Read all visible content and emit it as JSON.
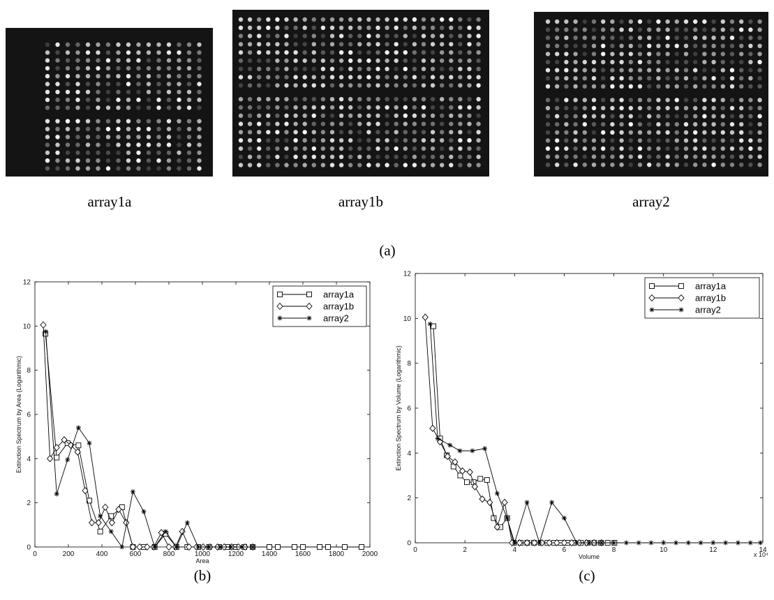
{
  "images": [
    {
      "caption": "array1a"
    },
    {
      "caption": "array1b"
    },
    {
      "caption": "array2"
    }
  ],
  "panel_labels": [
    "(a)",
    "(b)",
    "(c)"
  ],
  "chart_data": [
    {
      "type": "line",
      "xlabel": "Area",
      "ylabel": "Extinction Spectrum by Area (Logarithmic)",
      "xlim": [
        0,
        2000
      ],
      "ylim": [
        0,
        12
      ],
      "xticks": [
        0,
        200,
        400,
        600,
        800,
        1000,
        1200,
        1400,
        1600,
        1800,
        2000
      ],
      "yticks": [
        0,
        2,
        4,
        6,
        8,
        10,
        12
      ],
      "legend": "upper right",
      "series": [
        {
          "name": "array1a",
          "color": "#000000",
          "marker": "square",
          "x": [
            63,
            130,
            195,
            260,
            325,
            390,
            455,
            520,
            585,
            650,
            715,
            780,
            845,
            910,
            975,
            1040,
            1100,
            1150,
            1200,
            1250,
            1300,
            1400,
            1450,
            1550,
            1600,
            1700,
            1750,
            1850,
            1950
          ],
          "values": [
            9.65,
            4.05,
            4.7,
            4.6,
            2.1,
            0.7,
            1.4,
            1.8,
            0,
            0,
            0,
            0.6,
            0,
            0,
            0,
            0,
            0,
            0,
            0,
            0,
            0,
            0,
            0,
            0,
            0,
            0,
            0,
            0,
            0
          ]
        },
        {
          "name": "array1b",
          "color": "#000000",
          "marker": "diamond",
          "x": [
            50,
            90,
            130,
            175,
            215,
            255,
            300,
            340,
            380,
            420,
            460,
            500,
            545,
            585,
            625,
            670,
            710,
            755,
            800,
            840,
            880,
            920,
            965,
            1005,
            1045,
            1090,
            1130,
            1175,
            1215,
            1255,
            1300
          ],
          "values": [
            10.05,
            4.0,
            4.5,
            4.85,
            4.6,
            4.3,
            2.55,
            1.1,
            1.1,
            1.8,
            1.1,
            1.7,
            1.1,
            0,
            0,
            0,
            0,
            0.65,
            0,
            0,
            0.7,
            0,
            0,
            0,
            0,
            0,
            0,
            0,
            0,
            0,
            0
          ]
        },
        {
          "name": "array2",
          "color": "#000000",
          "marker": "star",
          "x": [
            65,
            130,
            195,
            260,
            325,
            390,
            455,
            520,
            585,
            650,
            715,
            780,
            845,
            910,
            975,
            1040,
            1105,
            1170,
            1235,
            1300
          ],
          "values": [
            9.75,
            2.4,
            3.95,
            5.4,
            4.7,
            1.4,
            0.7,
            0,
            2.5,
            1.6,
            0,
            0.7,
            0,
            1.1,
            0,
            0,
            0,
            0,
            0,
            0
          ]
        }
      ]
    },
    {
      "type": "line",
      "xlabel": "Volume",
      "ylabel": "Extinction Spectrum by Volume (Logarithmic)",
      "x_multiplier": "x 10⁴",
      "xlim": [
        0,
        140000
      ],
      "ylim": [
        0,
        12
      ],
      "xticks": [
        0,
        {
          "value": 20000,
          "label": "2"
        },
        {
          "value": 40000,
          "label": "4"
        },
        {
          "value": 60000,
          "label": "6"
        },
        {
          "value": 80000,
          "label": "8"
        },
        {
          "value": 100000,
          "label": "10"
        },
        {
          "value": 120000,
          "label": "12"
        },
        {
          "value": 140000,
          "label": "14"
        }
      ],
      "yticks": [
        0,
        2,
        4,
        6,
        8,
        10,
        12
      ],
      "legend": "upper right",
      "series": [
        {
          "name": "array1a",
          "color": "#000000",
          "marker": "square",
          "x": [
            7300,
            10000,
            12700,
            15400,
            18100,
            20800,
            23500,
            26200,
            28900,
            31600,
            34300,
            37000,
            39700,
            42400,
            45100,
            47800,
            50500,
            53200,
            55900,
            58600,
            61300,
            64000,
            66700,
            69400,
            72100,
            74800,
            77500,
            80200
          ],
          "values": [
            9.65,
            4.65,
            3.9,
            3.4,
            3.0,
            2.7,
            2.7,
            2.85,
            2.8,
            1.1,
            0.7,
            1.1,
            0,
            0,
            0,
            0,
            0,
            0,
            0,
            0,
            0,
            0,
            0,
            0,
            0,
            0,
            0,
            0
          ]
        },
        {
          "name": "array1b",
          "color": "#000000",
          "marker": "diamond",
          "x": [
            4000,
            7000,
            10000,
            13000,
            16000,
            19000,
            22000,
            24000,
            27000,
            30000,
            33000,
            36000,
            39000,
            42000,
            45000,
            48000,
            51000,
            54000,
            57000,
            60000,
            63000,
            66000,
            69000,
            72000,
            75000
          ],
          "values": [
            10.05,
            5.1,
            4.5,
            3.85,
            3.6,
            3.2,
            3.15,
            2.5,
            1.95,
            1.8,
            0.7,
            1.8,
            0,
            0,
            0,
            0,
            0,
            0,
            0,
            0,
            0,
            0,
            0,
            0,
            0
          ]
        },
        {
          "name": "array2",
          "color": "#000000",
          "marker": "star",
          "x": [
            6000,
            9000,
            14000,
            18000,
            23000,
            28000,
            33000,
            37000,
            40000,
            45000,
            50000,
            55000,
            60000,
            65000,
            70000,
            75000,
            80000,
            85000,
            90000,
            95000,
            100000,
            105000,
            110000,
            115000,
            120000,
            125000,
            130000,
            135000,
            139000
          ],
          "values": [
            9.75,
            4.65,
            4.35,
            4.1,
            4.1,
            4.2,
            2.2,
            1.1,
            0,
            1.8,
            0,
            1.8,
            1.1,
            0,
            0,
            0,
            0,
            0,
            0,
            0,
            0,
            0,
            0,
            0,
            0,
            0,
            0,
            0,
            0
          ]
        }
      ]
    }
  ]
}
